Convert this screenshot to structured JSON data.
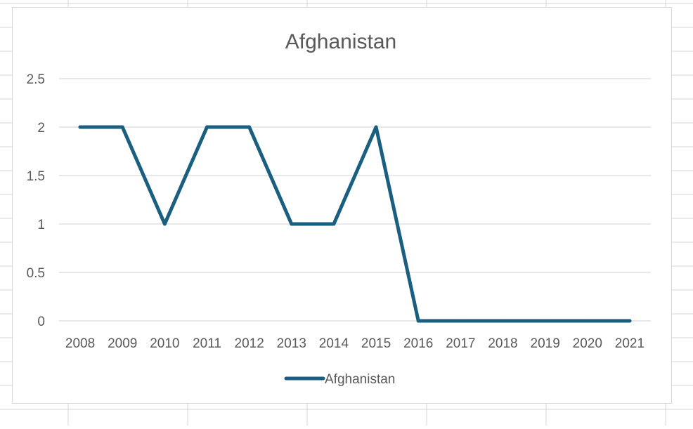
{
  "colors": {
    "series": "#1a5e80",
    "gridline": "#d9d9d9",
    "text": "#595959",
    "title": "#595959",
    "cell_border": "#d4d4d4"
  },
  "chart_data": {
    "type": "line",
    "title": "Afghanistan",
    "xlabel": "",
    "ylabel": "",
    "categories": [
      "2008",
      "2009",
      "2010",
      "2011",
      "2012",
      "2013",
      "2014",
      "2015",
      "2016",
      "2017",
      "2018",
      "2019",
      "2020",
      "2021"
    ],
    "series": [
      {
        "name": "Afghanistan",
        "values": [
          2,
          2,
          1,
          2,
          2,
          1,
          1,
          2,
          0,
          0,
          0,
          0,
          0,
          0
        ]
      }
    ],
    "ylim": [
      0,
      2.5
    ],
    "yticks": [
      "0",
      "0.5",
      "1",
      "1.5",
      "2",
      "2.5"
    ],
    "grid": "horizontal",
    "legend_position": "bottom"
  }
}
